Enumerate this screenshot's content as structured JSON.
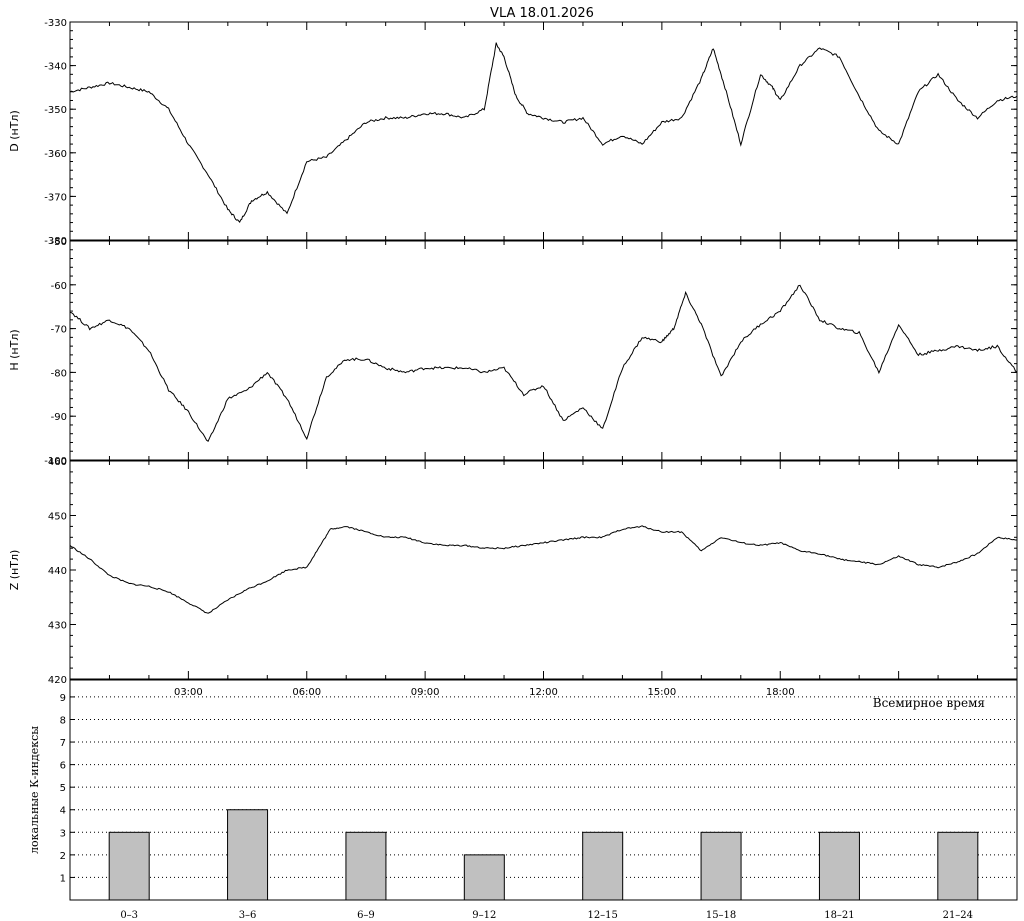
{
  "title": "VLA   18.01.2026",
  "x_axis_ticks": [
    "03:00",
    "06:00",
    "09:00",
    "12:00",
    "15:00",
    "18:00"
  ],
  "x_axis_title": "Всемирное время",
  "colors": {
    "line": "#000000",
    "bar_fill": "#c0c0c0",
    "grid": "#000000",
    "background": "#ffffff"
  },
  "chart_data": [
    {
      "type": "line",
      "component": "D",
      "ylabel": "D (нТл)",
      "ylim": [
        -380,
        -330
      ],
      "yticks": [
        -380,
        -370,
        -360,
        -350,
        -340,
        -330
      ],
      "xlim_hours": [
        0,
        24
      ],
      "x_hours": [
        0,
        0.5,
        1,
        1.5,
        2,
        2.5,
        3,
        3.5,
        4,
        4.3,
        4.6,
        5,
        5.5,
        6,
        6.5,
        7,
        7.5,
        8,
        8.5,
        9,
        9.5,
        10,
        10.5,
        10.8,
        11,
        11.3,
        11.6,
        12,
        12.5,
        13,
        13.5,
        14,
        14.5,
        15,
        15.5,
        16,
        16.3,
        16.6,
        17,
        17.5,
        17.8,
        18,
        18.5,
        19,
        19.5,
        20,
        20.5,
        21,
        21.5,
        22,
        22.5,
        23,
        23.5,
        24
      ],
      "values": [
        -346,
        -345,
        -344,
        -345,
        -346,
        -350,
        -358,
        -365,
        -373,
        -376,
        -371,
        -369,
        -374,
        -362,
        -361,
        -357,
        -353,
        -352,
        -352,
        -351,
        -351,
        -352,
        -350,
        -335,
        -338,
        -347,
        -351,
        -352,
        -353,
        -352,
        -358,
        -356,
        -358,
        -353,
        -352,
        -343,
        -336,
        -345,
        -358,
        -342,
        -345,
        -348,
        -340,
        -336,
        -338,
        -347,
        -355,
        -358,
        -346,
        -342,
        -348,
        -352,
        -348,
        -347
      ]
    },
    {
      "type": "line",
      "component": "H",
      "ylabel": "H (нТл)",
      "ylim": [
        -100,
        -50
      ],
      "yticks": [
        -100,
        -90,
        -80,
        -70,
        -60,
        -50
      ],
      "xlim_hours": [
        0,
        24
      ],
      "x_hours": [
        0,
        0.5,
        1,
        1.5,
        2,
        2.5,
        3,
        3.5,
        4,
        4.5,
        5,
        5.5,
        6,
        6.5,
        7,
        7.5,
        8,
        8.5,
        9,
        9.5,
        10,
        10.5,
        11,
        11.5,
        12,
        12.5,
        13,
        13.5,
        14,
        14.5,
        15,
        15.3,
        15.6,
        16,
        16.5,
        17,
        17.5,
        18,
        18.5,
        19,
        19.5,
        20,
        20.5,
        21,
        21.5,
        22,
        22.5,
        23,
        23.5,
        24
      ],
      "values": [
        -66,
        -70,
        -68,
        -70,
        -75,
        -84,
        -89,
        -96,
        -86,
        -84,
        -80,
        -86,
        -95,
        -81,
        -77,
        -77,
        -79,
        -80,
        -79,
        -79,
        -79,
        -80,
        -79,
        -85,
        -83,
        -91,
        -88,
        -93,
        -79,
        -72,
        -73,
        -70,
        -62,
        -69,
        -81,
        -73,
        -69,
        -66,
        -60,
        -68,
        -70,
        -71,
        -80,
        -69,
        -76,
        -75,
        -74,
        -75,
        -74,
        -80
      ]
    },
    {
      "type": "line",
      "component": "Z",
      "ylabel": "Z (нТл)",
      "ylim": [
        420,
        460
      ],
      "yticks": [
        420,
        430,
        440,
        450,
        460
      ],
      "xlim_hours": [
        0,
        24
      ],
      "x_hours": [
        0,
        0.5,
        1,
        1.5,
        2,
        2.5,
        3,
        3.5,
        4,
        4.5,
        5,
        5.5,
        6,
        6.3,
        6.6,
        7,
        7.5,
        8,
        8.5,
        9,
        9.5,
        10,
        10.5,
        11,
        11.5,
        12,
        12.5,
        13,
        13.5,
        14,
        14.5,
        15,
        15.5,
        16,
        16.5,
        17,
        17.5,
        18,
        18.5,
        19,
        19.5,
        20,
        20.5,
        21,
        21.5,
        22,
        22.5,
        23,
        23.5,
        24
      ],
      "values": [
        444.5,
        442,
        439,
        437.5,
        437,
        436,
        434,
        432,
        434.5,
        436.5,
        438,
        440,
        440.5,
        444,
        447.5,
        448,
        447,
        446,
        446,
        445,
        444.5,
        444.5,
        444,
        444,
        444.5,
        445,
        445.5,
        446,
        446,
        447.5,
        448,
        447,
        447,
        443.5,
        446,
        445,
        444.5,
        445,
        443.5,
        443,
        442,
        441.5,
        441,
        442.5,
        441,
        440.5,
        441.5,
        443,
        446,
        445.5
      ]
    },
    {
      "type": "bar",
      "ylabel": "локальные К-индексы",
      "ylim": [
        0,
        9
      ],
      "yticks": [
        1,
        2,
        3,
        4,
        5,
        6,
        7,
        8,
        9
      ],
      "categories": [
        "0–3",
        "3–6",
        "6–9",
        "9–12",
        "12–15",
        "15–18",
        "18–21",
        "21–24"
      ],
      "values": [
        3,
        4,
        3,
        2,
        3,
        3,
        3,
        3
      ]
    }
  ]
}
